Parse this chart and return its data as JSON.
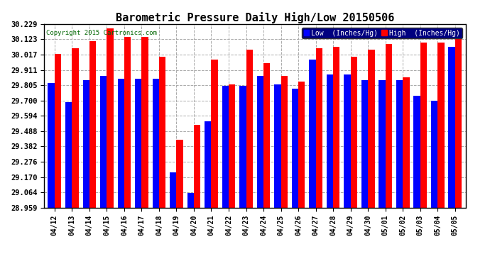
{
  "title": "Barometric Pressure Daily High/Low 20150506",
  "copyright": "Copyright 2015 Cartronics.com",
  "legend_low": "Low  (Inches/Hg)",
  "legend_high": "High  (Inches/Hg)",
  "low_color": "#0000ff",
  "high_color": "#ff0000",
  "bg_color": "#ffffff",
  "plot_bg_color": "#ffffff",
  "grid_color": "#aaaaaa",
  "ylim_min": 28.959,
  "ylim_max": 30.229,
  "yticks": [
    28.959,
    29.064,
    29.17,
    29.276,
    29.382,
    29.488,
    29.594,
    29.7,
    29.805,
    29.911,
    30.017,
    30.123,
    30.229
  ],
  "dates": [
    "04/12",
    "04/13",
    "04/14",
    "04/15",
    "04/16",
    "04/17",
    "04/18",
    "04/19",
    "04/20",
    "04/21",
    "04/22",
    "04/23",
    "04/24",
    "04/25",
    "04/26",
    "04/27",
    "04/28",
    "04/29",
    "04/30",
    "05/01",
    "05/02",
    "05/03",
    "05/04",
    "05/05"
  ],
  "low_values": [
    29.82,
    29.69,
    29.84,
    29.87,
    29.85,
    29.85,
    29.85,
    29.2,
    29.06,
    29.555,
    29.8,
    29.8,
    29.87,
    29.81,
    29.78,
    29.98,
    29.88,
    29.88,
    29.84,
    29.84,
    29.84,
    29.73,
    29.7,
    30.07
  ],
  "high_values": [
    30.02,
    30.06,
    30.11,
    30.2,
    30.14,
    30.14,
    30.0,
    29.43,
    29.53,
    29.98,
    29.81,
    30.05,
    29.96,
    29.87,
    29.83,
    30.06,
    30.07,
    30.0,
    30.05,
    30.09,
    29.86,
    30.1,
    30.1,
    30.2
  ],
  "bar_width": 0.38,
  "title_fontsize": 11,
  "tick_fontsize": 7,
  "ytick_fontsize": 7.5,
  "copyright_fontsize": 6.5
}
